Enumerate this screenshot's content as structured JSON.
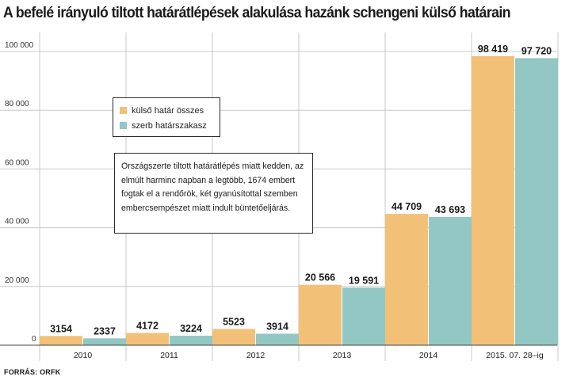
{
  "title": "A befelé irányuló tiltott határátlépések alakulása hazánk schengeni külső határain",
  "source": "FORRÁS: ORFK",
  "note": "Országszerte tiltott határátlépés miatt kedden, az elmúlt harminc napban a legtöbb, 1674 embert fogtak el a rendőrök, két gyanúsítottal szemben embercsempészet miatt indult büntetőeljárás.",
  "colors": {
    "kulso": "#f2c077",
    "szerb": "#92c7c3",
    "grid": "#c8c8c8",
    "axis": "#444444"
  },
  "chart_data": {
    "type": "bar",
    "title": "A befelé irányuló tiltott határátlépések alakulása hazánk schengeni külső határain",
    "xlabel": "",
    "ylabel": "",
    "ylim": [
      0,
      100000
    ],
    "yticks": [
      0,
      20000,
      40000,
      60000,
      80000,
      100000
    ],
    "ytick_labels": [
      "0",
      "20 000",
      "40 000",
      "60 000",
      "80 000",
      "100 000"
    ],
    "categories": [
      "2010",
      "2011",
      "2012",
      "2013",
      "2014",
      "2015. 07. 28–ig"
    ],
    "series": [
      {
        "name": "külső határ összes",
        "color_key": "kulso",
        "values": [
          3154,
          4172,
          5523,
          20566,
          44709,
          98419
        ],
        "labels": [
          "3154",
          "4172",
          "5523",
          "20 566",
          "44 709",
          "98 419"
        ]
      },
      {
        "name": "szerb határszakasz",
        "color_key": "szerb",
        "values": [
          2337,
          3224,
          3914,
          19591,
          43693,
          97720
        ],
        "labels": [
          "2337",
          "3224",
          "3914",
          "19 591",
          "43 693",
          "97 720"
        ]
      }
    ],
    "legend_position": "upper-left"
  }
}
